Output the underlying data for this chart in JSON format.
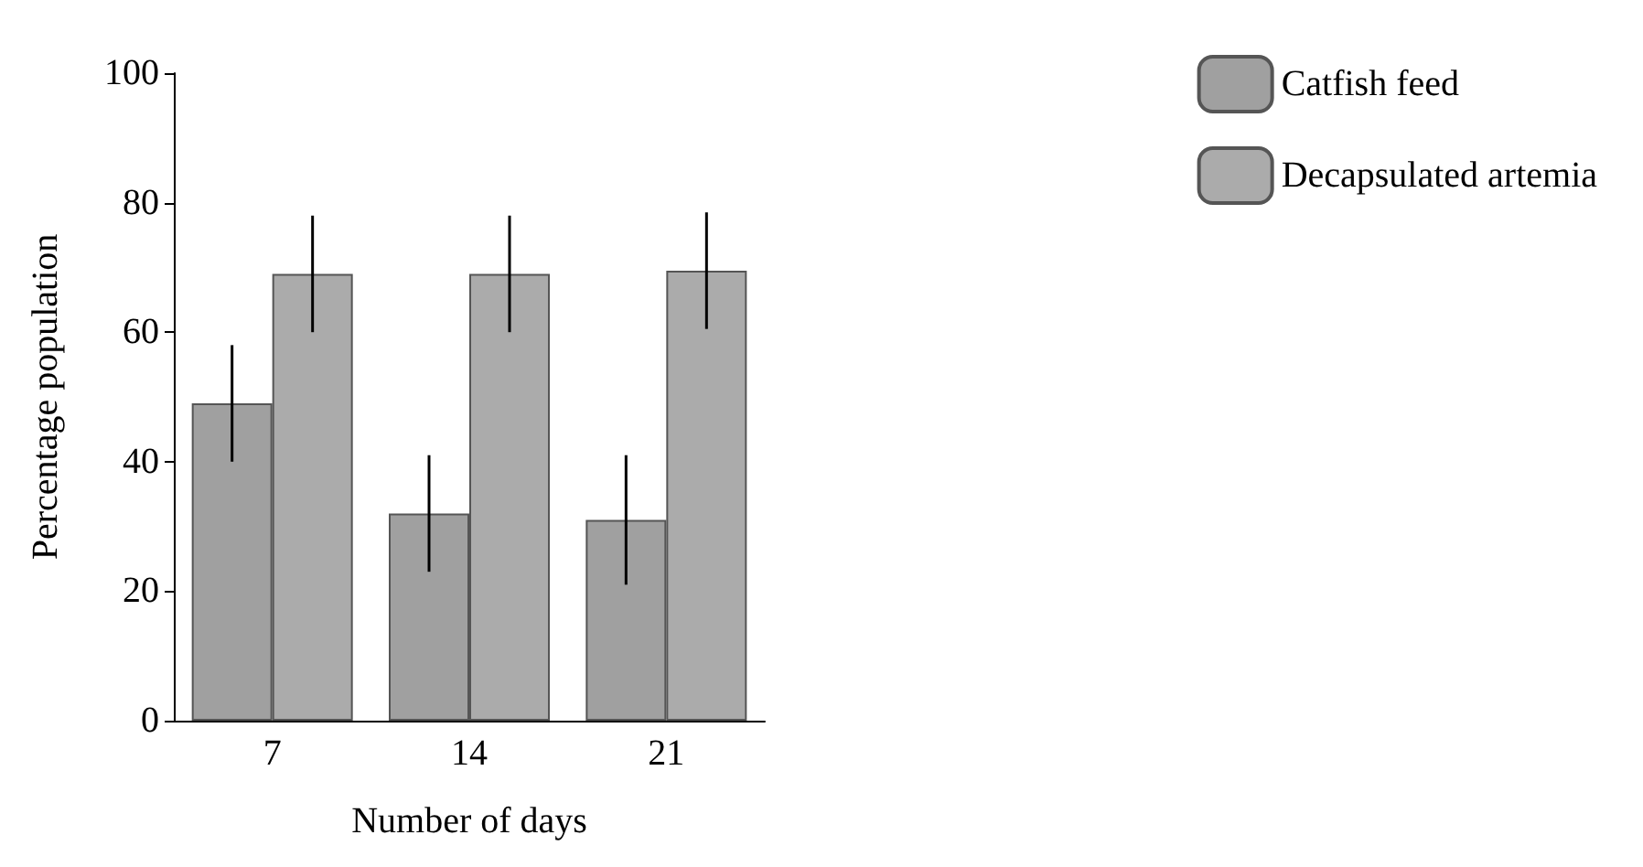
{
  "chart_data": {
    "type": "bar",
    "xlabel": "Number of days",
    "ylabel": "Percentage population",
    "categories": [
      "7",
      "14",
      "21"
    ],
    "series": [
      {
        "name": "Catfish feed",
        "color": "#a0a0a0",
        "values": [
          49,
          32,
          31
        ],
        "errors": [
          9,
          9,
          10
        ]
      },
      {
        "name": "Decapsulated artemia",
        "color": "#ababab",
        "values": [
          69,
          69,
          69.5
        ],
        "errors": [
          9,
          9,
          9
        ]
      }
    ],
    "ylim": [
      0,
      100
    ],
    "yticks": [
      0,
      20,
      40,
      60,
      80,
      100
    ],
    "grid": false,
    "legend": "top right"
  }
}
